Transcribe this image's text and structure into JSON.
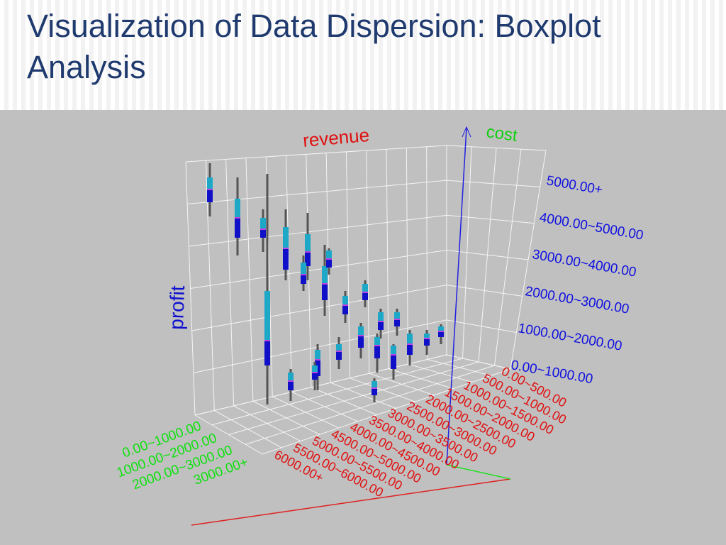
{
  "title": "Visualization of Data Dispersion: Boxplot Analysis",
  "plot": {
    "axis_titles": {
      "x": "revenue",
      "y": "cost",
      "z": "profit"
    },
    "cost_levels": [
      "5000.00+",
      "4000.00~5000.00",
      "3000.00~4000.00",
      "2000.00~3000.00",
      "1000.00~2000.00",
      "0.00~1000.00"
    ],
    "revenue_levels": [
      "0.00~500.00",
      "500.00~1000.00",
      "1000.00~1500.00",
      "1500.00~2000.00",
      "2000.00~2500.00",
      "2500.00~3000.00",
      "3000.00~3500.00",
      "3500.00~4000.00",
      "4000.00~4500.00",
      "4500.00~5000.00",
      "5000.00~5500.00",
      "5500.00~6000.00",
      "6000.00+"
    ],
    "profit_levels": [
      "0.00~1000.00",
      "1000.00~2000.00",
      "2000.00~3000.00",
      "3000.00+"
    ]
  }
}
